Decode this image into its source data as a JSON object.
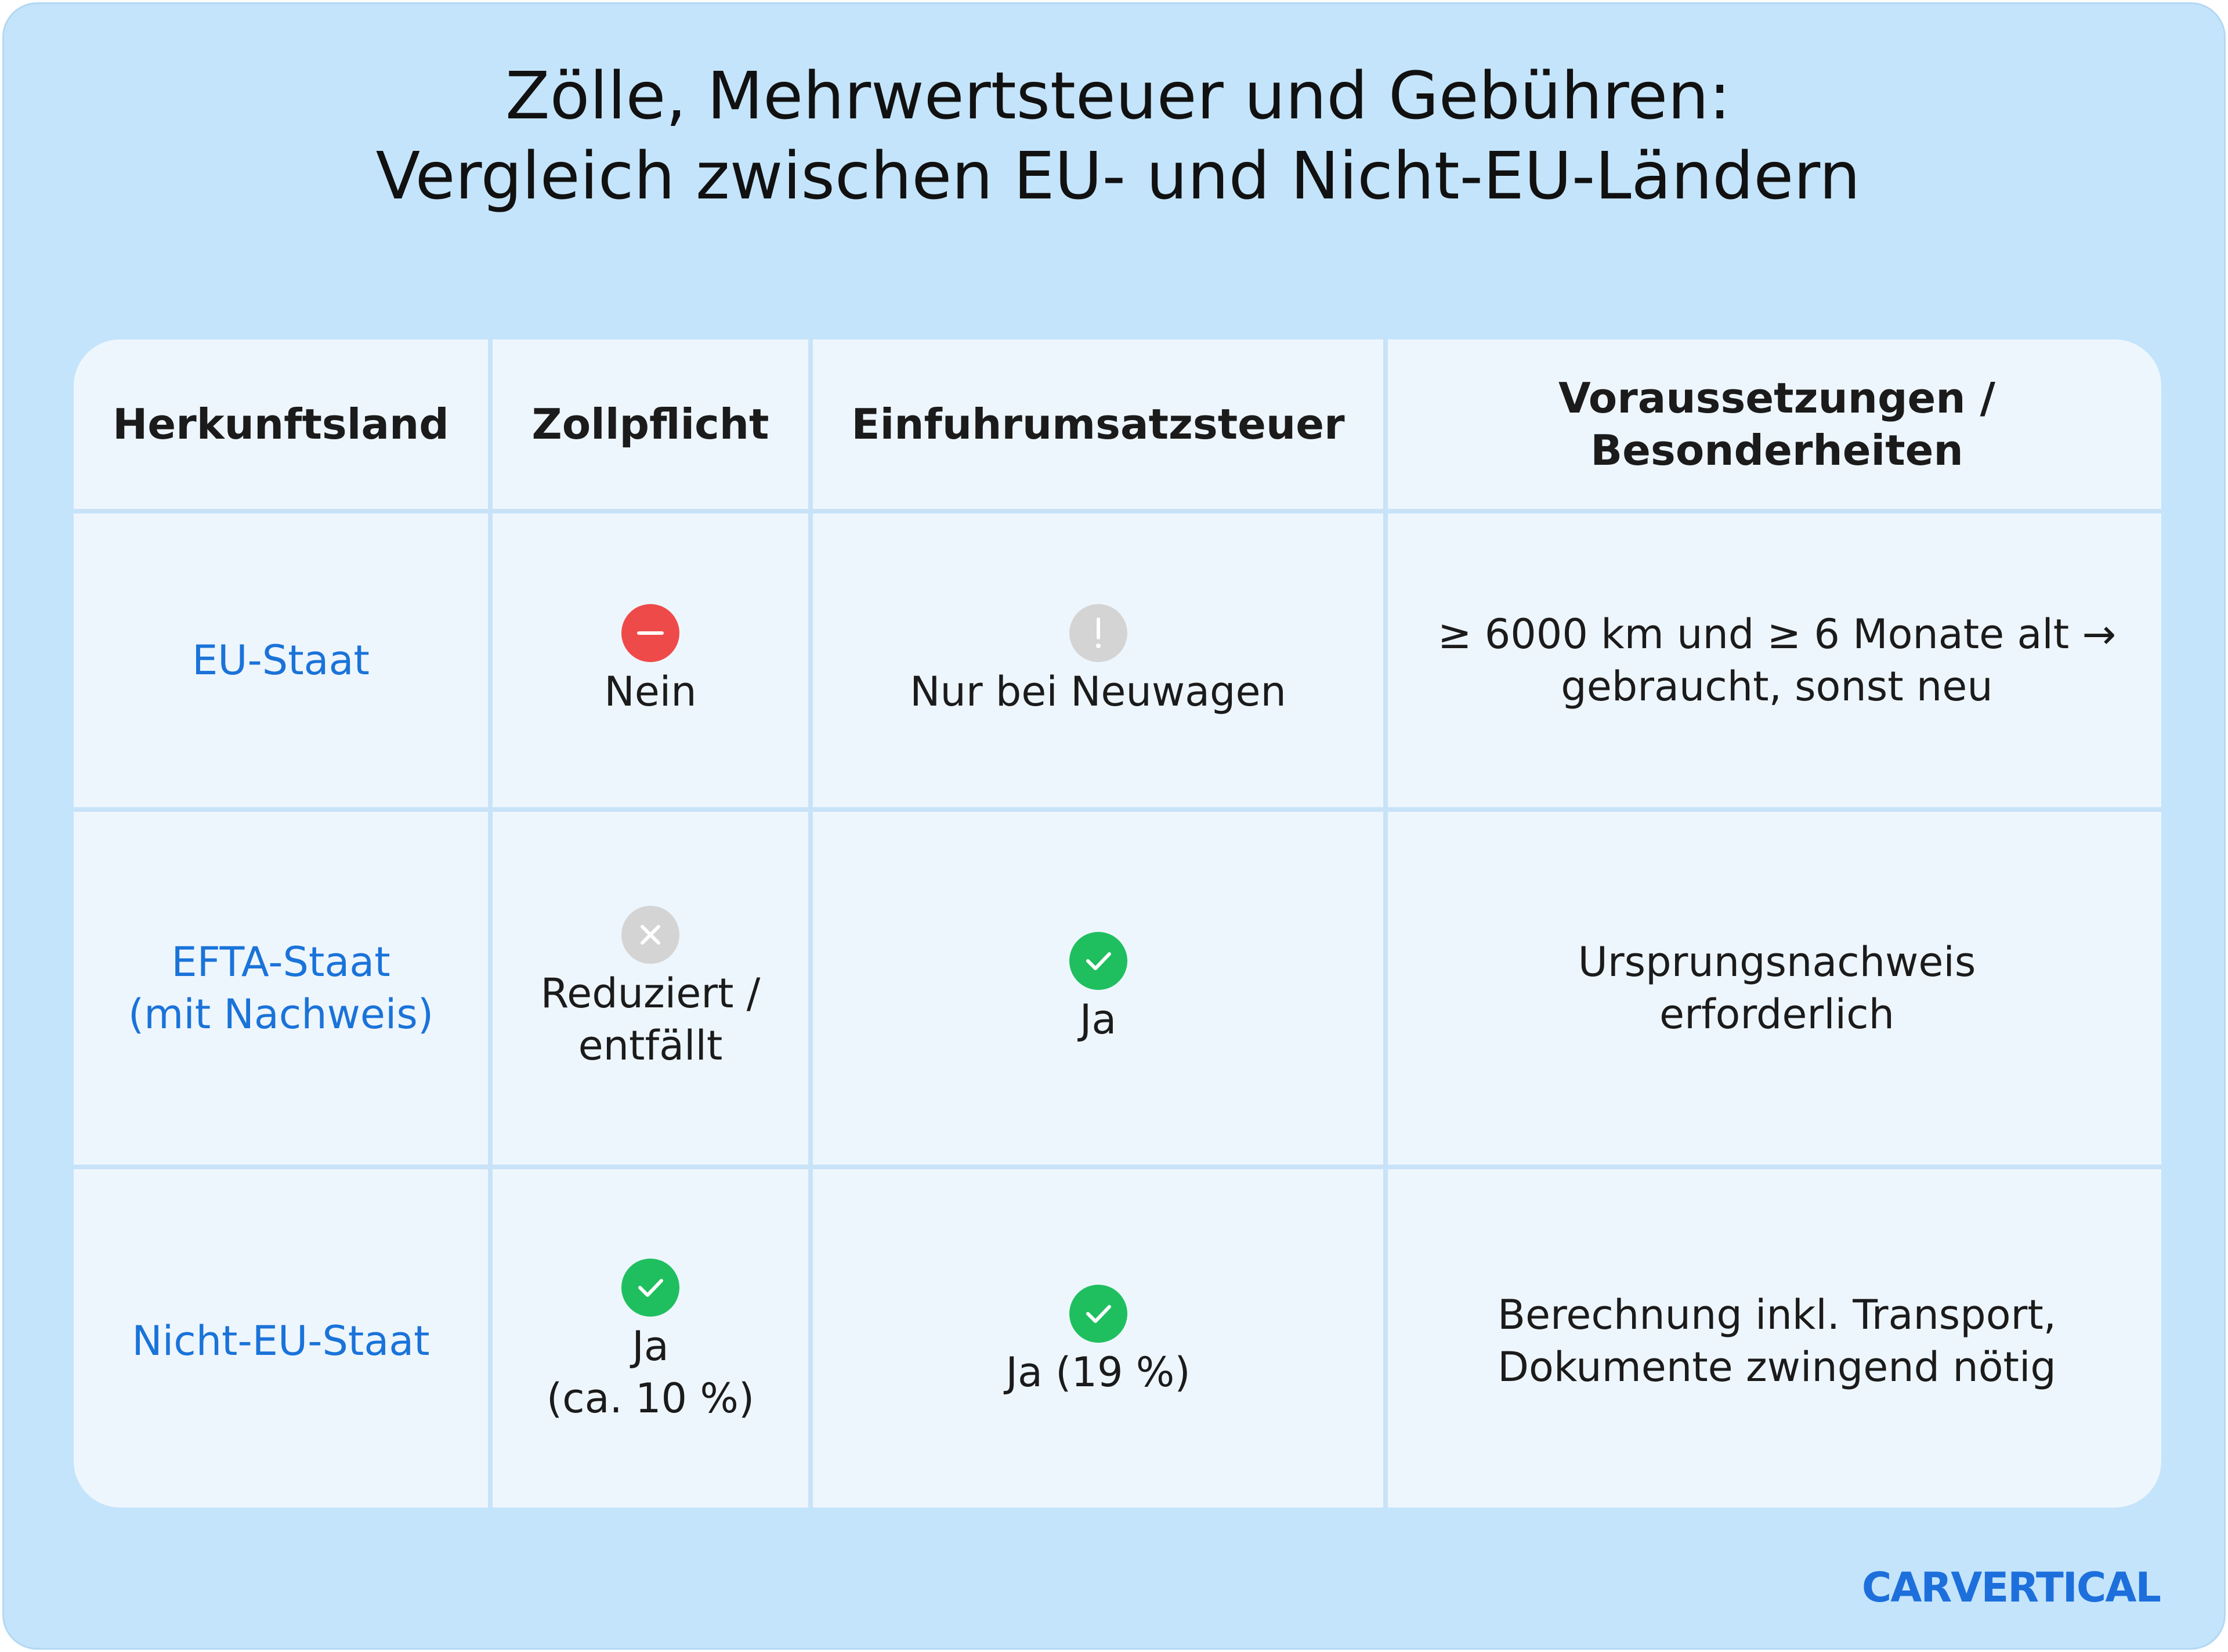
{
  "title": [
    "Zölle, Mehrwertsteuer und Gebühren:",
    "Vergleich zwischen EU- und Nicht-EU-Ländern"
  ],
  "table": {
    "header": [
      [
        "Herkunftsland"
      ],
      [
        "Zollpflicht"
      ],
      [
        "Einfuhrumsatzsteuer"
      ],
      [
        "Voraussetzungen /",
        "Besonderheiten"
      ]
    ],
    "rows": [
      [
        [
          "EU-Staat"
        ],
        [
          "Nein"
        ],
        [
          "Nur bei Neuwagen"
        ],
        [
          "≥ 6000 km und ≥ 6 Monate alt →",
          "gebraucht, sonst neu"
        ]
      ],
      [
        [
          "EFTA-Staat",
          "(mit Nachweis)"
        ],
        [
          "Reduziert /",
          "entfällt"
        ],
        [
          "Ja"
        ],
        [
          "Ursprungsnachweis",
          "erforderlich"
        ]
      ],
      [
        [
          "Nicht-EU-Staat"
        ],
        [
          "Ja",
          "(ca. 10 %)"
        ],
        [
          "Ja (19 %)"
        ],
        [
          "Berechnung inkl. Transport,",
          "Dokumente zwingend nötig"
        ]
      ]
    ]
  },
  "logo": "CARVERTICAL"
}
